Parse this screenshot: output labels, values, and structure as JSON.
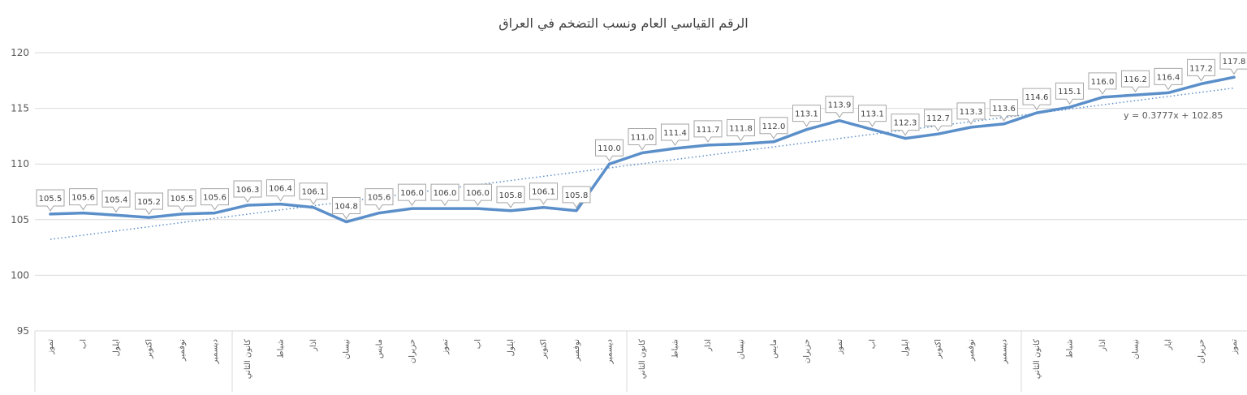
{
  "chart_data": {
    "type": "line",
    "title": "الرقم القياسي العام ونسب التضخم في العراق",
    "xlabel": "",
    "ylabel": "",
    "ylim": [
      95,
      120
    ],
    "yticks": [
      95,
      100,
      105,
      110,
      115,
      120
    ],
    "grid": true,
    "legend": "none",
    "categories": [
      "تموز",
      "اب",
      "ايلول",
      "اكتوبر",
      "نوفمبر",
      "ديسمبر",
      "كانون الثاني",
      "شباط",
      "اذار",
      "نيسان",
      "مايس",
      "حزيران",
      "تموز",
      "اب",
      "ايلول",
      "اكتوبر",
      "نوفمبر",
      "ديسمبر",
      "كانون الثاني",
      "شباط",
      "اذار",
      "نيسان",
      "مايس",
      "حزيران",
      "تموز",
      "اب",
      "ايلول",
      "اكتوبر",
      "نوفمبر",
      "ديسمبر",
      "كانون الثاني",
      "شباط",
      "اذار",
      "نيسان",
      "ايار",
      "حزيران",
      "تموز"
    ],
    "series": [
      {
        "values": [
          105.5,
          105.6,
          105.4,
          105.2,
          105.5,
          105.6,
          106.3,
          106.4,
          106.1,
          104.8,
          105.6,
          106.0,
          106.0,
          106.0,
          105.8,
          106.1,
          105.8,
          110.0,
          111.0,
          111.4,
          111.7,
          111.8,
          112.0,
          113.1,
          113.9,
          113.1,
          112.3,
          112.7,
          113.3,
          113.6,
          114.6,
          115.1,
          116.0,
          116.2,
          116.4,
          117.2,
          117.8
        ],
        "labels": [
          "105.5",
          "105.6",
          "105.4",
          "105.2",
          "105.5",
          "105.6",
          "106.3",
          "106.4",
          "106.1",
          "104.8",
          "105.6",
          "106.0",
          "106.0",
          "106.0",
          "105.8",
          "106.1",
          "105.8",
          "110.0",
          "111.0",
          "111.4",
          "111.7",
          "111.8",
          "112.0",
          "113.1",
          "113.9",
          "113.1",
          "112.3",
          "112.7",
          "113.3",
          "113.6",
          "114.6",
          "115.1",
          "116.0",
          "116.2",
          "116.4",
          "117.2",
          "117.8"
        ]
      }
    ],
    "trendline": {
      "slope": 0.3777,
      "intercept": 102.85,
      "label": "y = 0.3777x + 102.85"
    },
    "colors": {
      "line": "#5b8fc9",
      "trend": "#5b8fc9",
      "grid": "#d9d9d9",
      "text": "#595959"
    }
  }
}
